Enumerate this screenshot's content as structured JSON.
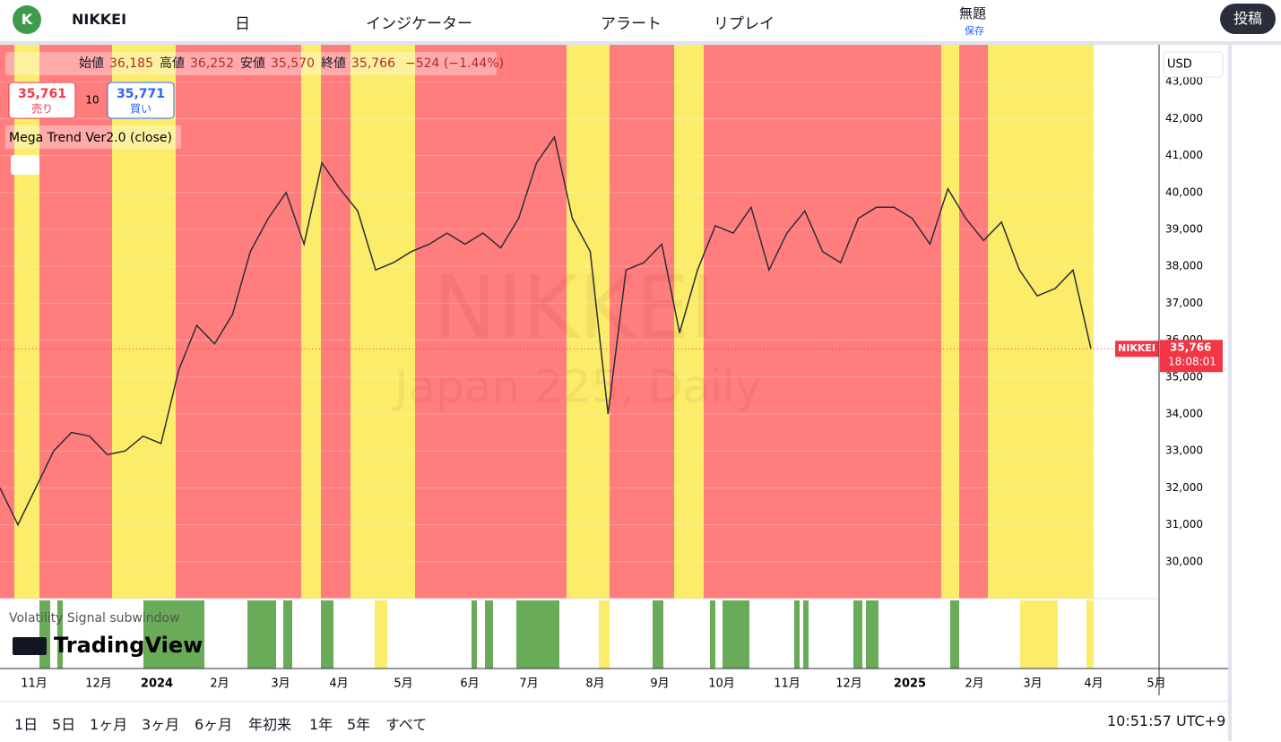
{
  "toolbar": {
    "symbol": "NIKKEI",
    "interval": "日",
    "indicators": "インジケーター",
    "alert": "アラート",
    "replay": "リプレイ",
    "layout_name": "無題",
    "save": "保存",
    "publish": "投稿"
  },
  "legend": {
    "open_label": "始値",
    "open": "36,185",
    "high_label": "高値",
    "high": "36,252",
    "low_label": "安値",
    "low": "35,570",
    "close_label": "終値",
    "close": "35,766",
    "change": "−524 (−1.44%)",
    "sell": "35,761",
    "sell_label": "売り",
    "spread": "10",
    "buy": "35,771",
    "buy_label": "買い",
    "indicator": "Mega Trend Ver2.0 (close)"
  },
  "watermark": {
    "symbol": "NIKKEI",
    "description": "Japan 225, Daily"
  },
  "currency": "USD",
  "price_tag": {
    "symbol": "NIKKEI",
    "price": "35,766",
    "countdown": "18:08:01"
  },
  "subwindow": {
    "title": "Volatility Signal subwindow",
    "brand": "TradingView"
  },
  "time_axis": [
    "11月",
    "12月",
    "2024",
    "2月",
    "3月",
    "4月",
    "5月",
    "6月",
    "7月",
    "8月",
    "9月",
    "10月",
    "11月",
    "12月",
    "2025",
    "2月",
    "3月",
    "4月",
    "5月"
  ],
  "ranges": [
    "1日",
    "5日",
    "1ヶ月",
    "3ヶ月",
    "6ヶ月",
    "年初来",
    "1年",
    "5年",
    "すべて"
  ],
  "clock": "10:51:57 UTC+9",
  "chart_data": {
    "type": "line",
    "color": "#2a2e39",
    "values": [
      32000,
      31000,
      32000,
      33000,
      33500,
      33400,
      32900,
      33000,
      33400,
      33200,
      35200,
      36400,
      35900,
      36700,
      38400,
      39300,
      40000,
      38600,
      40800,
      40100,
      39500,
      37900,
      38100,
      38400,
      38600,
      38900,
      38600,
      38900,
      38500,
      39300,
      40800,
      41500,
      39300,
      38400,
      34000,
      37900,
      38100,
      38600,
      36200,
      37900,
      39100,
      38900,
      39600,
      37900,
      38900,
      39500,
      38400,
      38100,
      39300,
      39600,
      39600,
      39300,
      38600,
      40100,
      39300,
      38700,
      39200,
      37900,
      37200,
      37400,
      37900,
      35766
    ],
    "ylim": [
      29000,
      44000
    ],
    "yticks": [
      {
        "value": 30000,
        "label": "30,000"
      },
      {
        "value": 31000,
        "label": "31,000"
      },
      {
        "value": 32000,
        "label": "32,000"
      },
      {
        "value": 33000,
        "label": "33,000"
      },
      {
        "value": 34000,
        "label": "34,000"
      },
      {
        "value": 35000,
        "label": "35,000"
      },
      {
        "value": 36000,
        "label": "36,000"
      },
      {
        "value": 37000,
        "label": "37,000"
      },
      {
        "value": 38000,
        "label": "38,000"
      },
      {
        "value": 39000,
        "label": "39,000"
      },
      {
        "value": 40000,
        "label": "40,000"
      },
      {
        "value": 41000,
        "label": "41,000"
      },
      {
        "value": 42000,
        "label": "42,000"
      },
      {
        "value": 43000,
        "label": "43,000"
      }
    ],
    "grid": true
  }
}
